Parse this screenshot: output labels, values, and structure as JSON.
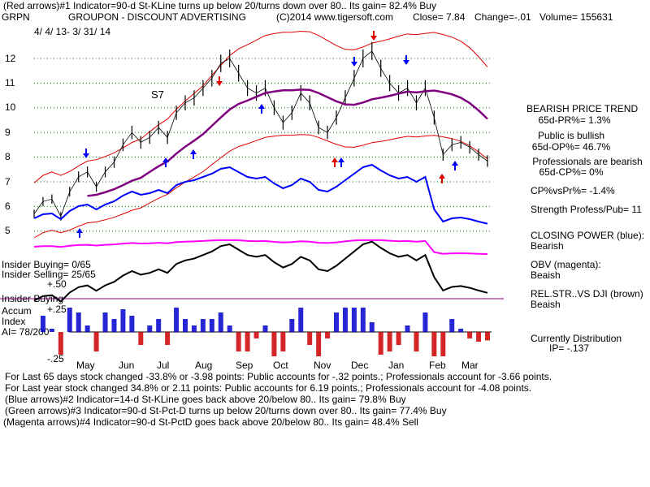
{
  "header": {
    "line1": "(Red arrows)#1 Indicator=90-d St-KLine turns up below 20/turns down over 80.. Its gain= 82.4% Buy",
    "ticker": "GRPN",
    "title": "GROUPON - DISCOUNT ADVERTISING",
    "copyright": "(C)2014 www.tigersoft.com",
    "close": "Close=  7.84",
    "change": "Change=-.01",
    "volume": "Volume= 155631",
    "date_range": "4/ 4/ 13- 3/ 31/ 14"
  },
  "signal_label": "S7",
  "insider": {
    "buying": "Insider Buying= 0/65",
    "selling": "Insider Selling= 25/65",
    "plus50": "+.50",
    "buying2": "Insider Buying"
  },
  "accum": {
    "line1": "Accum",
    "line2": "Index",
    "ai": "AI= 78/200",
    "plus25": "+.25",
    "minus25": "-.25"
  },
  "right_panel": {
    "price_trend_title": "BEARISH PRICE TREND",
    "pr": "65d-PR%= 1.3%",
    "public": "Public is bullish",
    "op": "65d-OP%= 46.7%",
    "professionals": "Professionals are bearish",
    "cp": "65d-CP%= 0%",
    "cpvspr": "CP%vsPr%= -1.4%",
    "strength": "Strength Profess/Pub= 11",
    "closing_power": "CLOSING POWER (blue):",
    "closing_power_val": "Bearish",
    "obv": "OBV (magenta):",
    "obv_val": "Beaish",
    "relstr": "REL.STR..VS DJI (brown)",
    "relstr_val": "Beaish",
    "distribution": "Currently Distribution",
    "ip": "IP= -.137"
  },
  "footer": {
    "line1": "For Last 65 days stock changed -33.8% or -3.98 points:  Public accounts for -.32 points.;  Professionals account for -3.66 points.",
    "line2": "For Last year stock changed  34.8% or  2.11 points:  Public accounts for  6.19 points.;  Professionals account for -4.08 points.",
    "line3": "(Blue arrows)#2 Indicator=14-d St-KLine goes back above 20/below 80.. Its gain= 79.8% Buy",
    "line4": "(Green arrows)#3 Indicator=90-d St-Pct-D turns up below 20/turns down over 80.. Its gain= 77.4% Buy",
    "line5": "(Magenta arrows)#4 Indicator=90-d St-PctD goes back above 20/below 80.. Its gain= 48.4% Sell"
  },
  "colors": {
    "price": "#000000",
    "ma65": "#800080",
    "band": "#e00000",
    "closing_power": "#0000ff",
    "obv": "#ff00ff",
    "rel_strength": "#000000",
    "accum_pos": "#0000cc",
    "accum_neg": "#cc0000",
    "grid": "#008000"
  },
  "chart_data": {
    "type": "line",
    "price_axis": {
      "ticks": [
        "12",
        "11",
        "10",
        "9",
        "8",
        "7",
        "6",
        "5"
      ],
      "values": [
        12,
        11,
        10,
        9,
        8,
        7,
        6,
        5
      ],
      "ylim": [
        4.5,
        13.5
      ]
    },
    "months": [
      "May",
      "Jun",
      "Jul",
      "Aug",
      "Sep",
      "Oct",
      "Nov",
      "Dec",
      "Jan",
      "Feb",
      "Mar"
    ],
    "series": [
      {
        "name": "Close",
        "values": [
          5.7,
          6.2,
          6.3,
          5.6,
          6.6,
          7.2,
          7.4,
          6.8,
          7.4,
          7.8,
          8.5,
          9.0,
          8.6,
          8.8,
          9.2,
          8.8,
          9.8,
          10.2,
          10.4,
          10.8,
          11.2,
          11.8,
          12.0,
          11.4,
          10.8,
          10.6,
          10.8,
          10.0,
          9.4,
          9.8,
          10.6,
          10.2,
          9.2,
          9.0,
          9.6,
          10.4,
          11.2,
          12.0,
          12.3,
          11.6,
          11.0,
          10.6,
          10.8,
          10.2,
          10.8,
          9.6,
          8.1,
          8.5,
          8.6,
          8.4,
          8.1,
          7.84
        ]
      }
    ],
    "indicator_labels": [
      "CLOSING POWER (blue)",
      "OBV (magenta)",
      "REL.STR..VS DJI (brown)"
    ]
  }
}
